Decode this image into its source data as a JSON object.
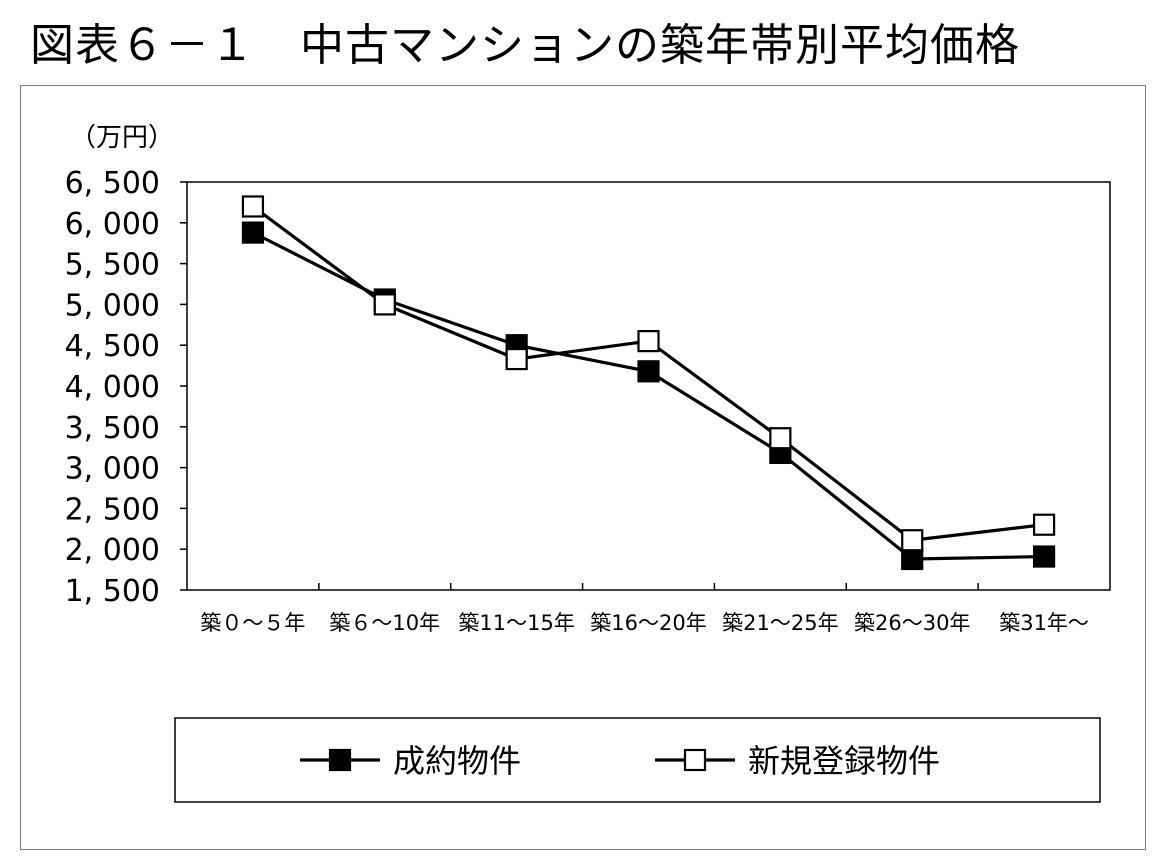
{
  "figure": {
    "title": "図表６－１　中古マンションの築年帯別平均価格"
  },
  "chart_data": {
    "type": "line",
    "title": "図表６－１　中古マンションの築年帯別平均価格",
    "ylabel": "（万円）",
    "xlabel": "",
    "ylim": [
      1500,
      6500
    ],
    "y_ticks": [
      1500,
      2000,
      2500,
      3000,
      3500,
      4000,
      4500,
      5000,
      5500,
      6000,
      6500
    ],
    "y_tick_labels": [
      "1, 500",
      "2, 000",
      "2, 500",
      "3, 000",
      "3, 500",
      "4, 000",
      "4, 500",
      "5, 000",
      "5, 500",
      "6, 000",
      "6, 500"
    ],
    "categories": [
      "築０～５年",
      "築６～10年",
      "築11～15年",
      "築16～20年",
      "築21～25年",
      "築26～30年",
      "築31年～"
    ],
    "grid": false,
    "legend_position": "bottom",
    "series": [
      {
        "name": "成約物件",
        "marker": "filled-square",
        "color": "#000000",
        "values": [
          5880,
          5060,
          4500,
          4180,
          3180,
          1880,
          1910
        ]
      },
      {
        "name": "新規登録物件",
        "marker": "open-square",
        "color": "#000000",
        "values": [
          6200,
          5000,
          4330,
          4550,
          3360,
          2110,
          2300
        ]
      }
    ]
  }
}
